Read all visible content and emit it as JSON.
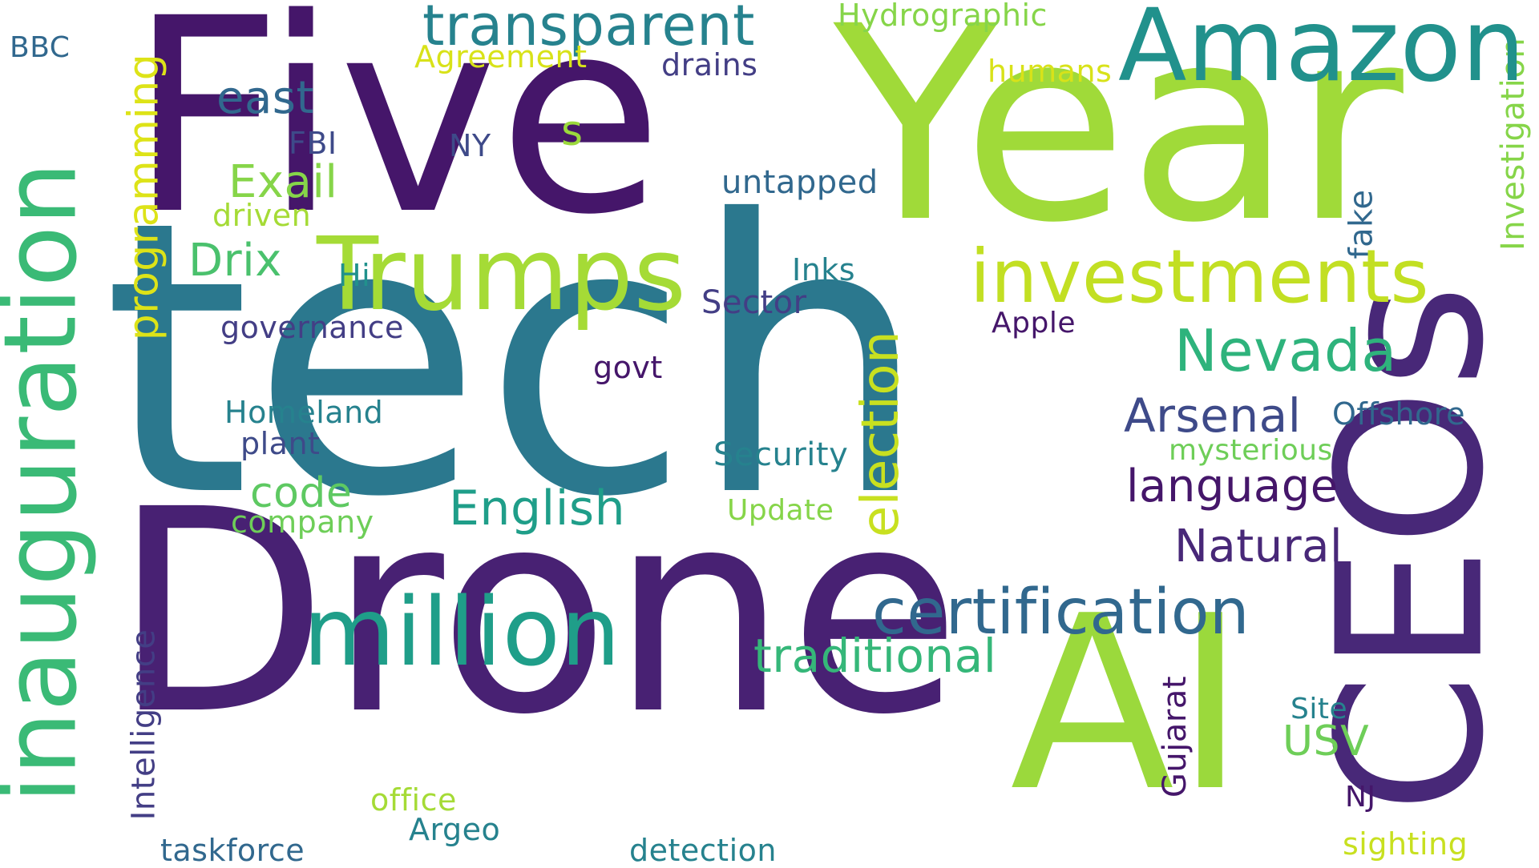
{
  "words": {
    "tech": "tech",
    "drone": "Drone",
    "year": "Year",
    "five": "Five",
    "ai": "AI",
    "ceos": "CEOs",
    "inauguration": "inauguration",
    "amazon": "Amazon",
    "trumps": "Trumps",
    "million": "million",
    "investments": "investments",
    "certification": "certification",
    "transparent": "transparent",
    "election": "election",
    "nevada": "Nevada",
    "traditional": "traditional",
    "english": "English",
    "arsenal": "Arsenal",
    "language": "language",
    "natural": "Natural",
    "east": "east",
    "exail": "Exail",
    "drix": "Drix",
    "programming": "programming",
    "code": "code",
    "usv": "USV",
    "hydrographic": "Hydrographic",
    "agreement": "Agreement",
    "drains": "drains",
    "humans": "humans",
    "bbc": "BBC",
    "fbi": "FBI",
    "ny": "NY",
    "s": "s",
    "untapped": "untapped",
    "driven": "driven",
    "hi": "Hi",
    "inks": "Inks",
    "sector": "Sector",
    "governance": "governance",
    "apple": "Apple",
    "govt": "govt",
    "homeland": "Homeland",
    "plant": "plant",
    "security": "Security",
    "offshore": "Offshore",
    "mysterious": "mysterious",
    "company": "company",
    "update": "Update",
    "intelligence": "Intelligence",
    "gujarat": "Gujarat",
    "site": "Site",
    "office": "office",
    "argeo": "Argeo",
    "nj": "NJ",
    "taskforce": "taskforce",
    "detection": "detection",
    "sighting": "sighting",
    "fake": "fake",
    "investigation": "Investigation"
  },
  "palette": {
    "dark_purple": "#45166a",
    "purple": "#482878",
    "indigo": "#3e4a89",
    "blue": "#31688e",
    "teal": "#26828e",
    "teal_green": "#1f9e89",
    "green": "#35b779",
    "light_green": "#6ece58",
    "lime": "#a5db36",
    "yellow": "#d8e219"
  }
}
